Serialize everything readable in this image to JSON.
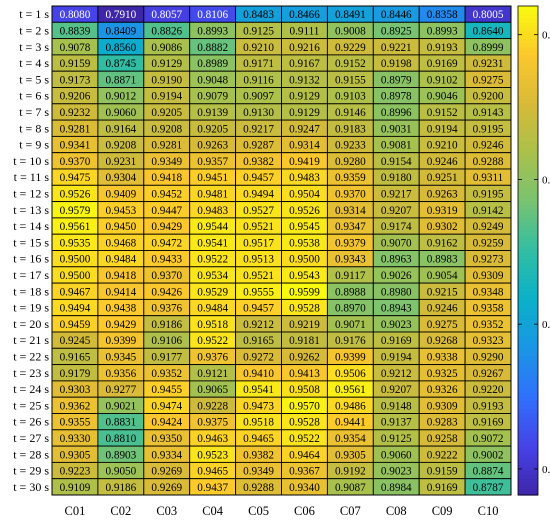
{
  "chart_data": {
    "type": "heatmap",
    "title": "",
    "xlabel": "",
    "ylabel": "",
    "x_categories": [
      "C01",
      "C02",
      "C03",
      "C04",
      "C05",
      "C06",
      "C07",
      "C08",
      "C09",
      "C10"
    ],
    "y_categories": [
      "t = 1 s",
      "t = 2 s",
      "t = 3 s",
      "t = 4 s",
      "t = 5 s",
      "t = 6 s",
      "t = 7 s",
      "t = 8 s",
      "t = 9 s",
      "t = 10 s",
      "t = 11 s",
      "t = 12 s",
      "t = 13 s",
      "t = 14 s",
      "t = 15 s",
      "t = 16 s",
      "t = 17 s",
      "t = 18 s",
      "t = 19 s",
      "t = 20 s",
      "t = 21 s",
      "t = 22 s",
      "t = 23 s",
      "t = 24 s",
      "t = 25 s",
      "t = 26 s",
      "t = 27 s",
      "t = 28 s",
      "t = 29 s",
      "t = 30 s"
    ],
    "values": [
      [
        0.808,
        0.791,
        0.8057,
        0.8106,
        0.8483,
        0.8466,
        0.8491,
        0.8446,
        0.8358,
        0.8005
      ],
      [
        0.8839,
        0.8409,
        0.8826,
        0.8993,
        0.9125,
        0.9111,
        0.9008,
        0.8925,
        0.8993,
        0.864
      ],
      [
        0.9078,
        0.856,
        0.9086,
        0.8882,
        0.921,
        0.9216,
        0.9229,
        0.9221,
        0.9193,
        0.8999
      ],
      [
        0.9159,
        0.8745,
        0.9129,
        0.8989,
        0.9171,
        0.9167,
        0.9152,
        0.9198,
        0.9169,
        0.9231
      ],
      [
        0.9173,
        0.8871,
        0.919,
        0.9048,
        0.9116,
        0.9132,
        0.9155,
        0.8979,
        0.9102,
        0.9275
      ],
      [
        0.9206,
        0.9012,
        0.9194,
        0.9079,
        0.9097,
        0.9129,
        0.9103,
        0.8978,
        0.9046,
        0.92
      ],
      [
        0.9232,
        0.906,
        0.9205,
        0.9139,
        0.913,
        0.9129,
        0.9146,
        0.8996,
        0.9152,
        0.9143
      ],
      [
        0.9281,
        0.9164,
        0.9208,
        0.9205,
        0.9217,
        0.9247,
        0.9183,
        0.9031,
        0.9194,
        0.9195
      ],
      [
        0.9341,
        0.9208,
        0.9281,
        0.9263,
        0.9287,
        0.9314,
        0.9233,
        0.9081,
        0.921,
        0.9246
      ],
      [
        0.937,
        0.9231,
        0.9349,
        0.9357,
        0.9382,
        0.9419,
        0.928,
        0.9154,
        0.9246,
        0.9288
      ],
      [
        0.9475,
        0.9304,
        0.9418,
        0.9451,
        0.9457,
        0.9483,
        0.9359,
        0.918,
        0.9251,
        0.9311
      ],
      [
        0.9526,
        0.9409,
        0.9452,
        0.9481,
        0.9494,
        0.9504,
        0.937,
        0.9217,
        0.9263,
        0.9195
      ],
      [
        0.9579,
        0.9453,
        0.9447,
        0.9483,
        0.9527,
        0.9526,
        0.9314,
        0.9207,
        0.9319,
        0.9142
      ],
      [
        0.9561,
        0.945,
        0.9429,
        0.9544,
        0.9521,
        0.9545,
        0.9347,
        0.9174,
        0.9302,
        0.9249
      ],
      [
        0.9535,
        0.9468,
        0.9472,
        0.9541,
        0.9517,
        0.9538,
        0.9379,
        0.907,
        0.9162,
        0.9259
      ],
      [
        0.95,
        0.9484,
        0.9433,
        0.9522,
        0.9513,
        0.95,
        0.9343,
        0.8963,
        0.8983,
        0.9273
      ],
      [
        0.95,
        0.9418,
        0.937,
        0.9534,
        0.9521,
        0.9543,
        0.9117,
        0.9026,
        0.9054,
        0.9309
      ],
      [
        0.9467,
        0.9414,
        0.9426,
        0.9529,
        0.9555,
        0.9599,
        0.8988,
        0.898,
        0.9215,
        0.9348
      ],
      [
        0.9494,
        0.9438,
        0.9376,
        0.9484,
        0.9457,
        0.9528,
        0.897,
        0.8943,
        0.9246,
        0.9358
      ],
      [
        0.9459,
        0.9429,
        0.9186,
        0.9518,
        0.9212,
        0.9219,
        0.9071,
        0.9023,
        0.9275,
        0.9352
      ],
      [
        0.9245,
        0.9399,
        0.9106,
        0.9522,
        0.9165,
        0.9181,
        0.9176,
        0.9169,
        0.9268,
        0.9323
      ],
      [
        0.9165,
        0.9345,
        0.9177,
        0.9376,
        0.9272,
        0.9262,
        0.9399,
        0.9194,
        0.9338,
        0.929
      ],
      [
        0.9179,
        0.9356,
        0.9352,
        0.9121,
        0.941,
        0.9413,
        0.9506,
        0.9212,
        0.9325,
        0.9267
      ],
      [
        0.9303,
        0.9277,
        0.9455,
        0.9065,
        0.9541,
        0.9508,
        0.9561,
        0.9207,
        0.9326,
        0.922
      ],
      [
        0.9362,
        0.9021,
        0.9474,
        0.9228,
        0.9473,
        0.957,
        0.9486,
        0.9148,
        0.9309,
        0.9193
      ],
      [
        0.9355,
        0.8831,
        0.9424,
        0.9375,
        0.9518,
        0.9528,
        0.9441,
        0.9137,
        0.9283,
        0.9169
      ],
      [
        0.933,
        0.881,
        0.935,
        0.9463,
        0.9465,
        0.9522,
        0.9354,
        0.9125,
        0.9258,
        0.9072
      ],
      [
        0.9305,
        0.8903,
        0.9334,
        0.9523,
        0.9382,
        0.9464,
        0.9305,
        0.906,
        0.9222,
        0.9002
      ],
      [
        0.9223,
        0.905,
        0.9269,
        0.9465,
        0.9349,
        0.9367,
        0.9192,
        0.9023,
        0.9159,
        0.8874
      ],
      [
        0.9109,
        0.9186,
        0.9269,
        0.9437,
        0.9288,
        0.934,
        0.9087,
        0.8984,
        0.9169,
        0.8787
      ]
    ],
    "colorbar": {
      "min": 0.791,
      "max": 0.9599,
      "ticks": [
        "0.8",
        "0.85",
        "0.9",
        "0.95"
      ]
    },
    "colormap": "parula",
    "grid": true,
    "legend": "right"
  }
}
